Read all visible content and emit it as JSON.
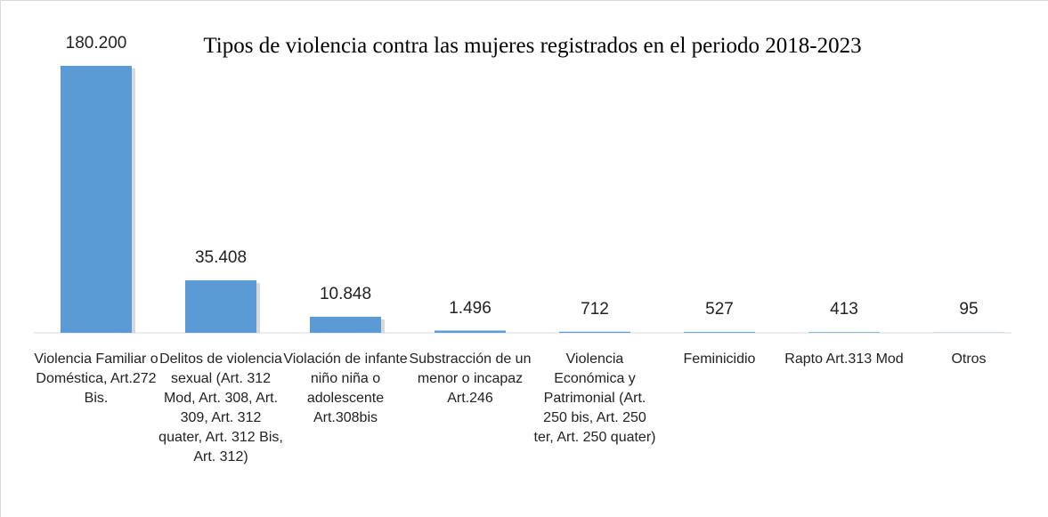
{
  "chart_data": {
    "type": "bar",
    "title": "Tipos de violencia contra las mujeres registrados en el periodo 2018-2023",
    "categories": [
      "Violencia Familiar o Doméstica, Art.272 Bis.",
      "Delitos de violencia sexual (Art. 312 Mod, Art. 308, Art. 309, Art. 312 quater, Art. 312 Bis, Art. 312)",
      "Violación de infante niño niña o adolescente Art.308bis",
      "Substracción de un menor o incapaz Art.246",
      "Violencia Económica y Patrimonial (Art. 250 bis, Art. 250 ter, Art. 250 quater)",
      "Feminicidio",
      "Rapto Art.313 Mod",
      "Otros"
    ],
    "values": [
      180200,
      35408,
      10848,
      1496,
      712,
      527,
      413,
      95
    ],
    "value_labels": [
      "180.200",
      "35.408",
      "10.848",
      "1.496",
      "712",
      "527",
      "413",
      "95"
    ],
    "color": "#5b9bd5"
  }
}
